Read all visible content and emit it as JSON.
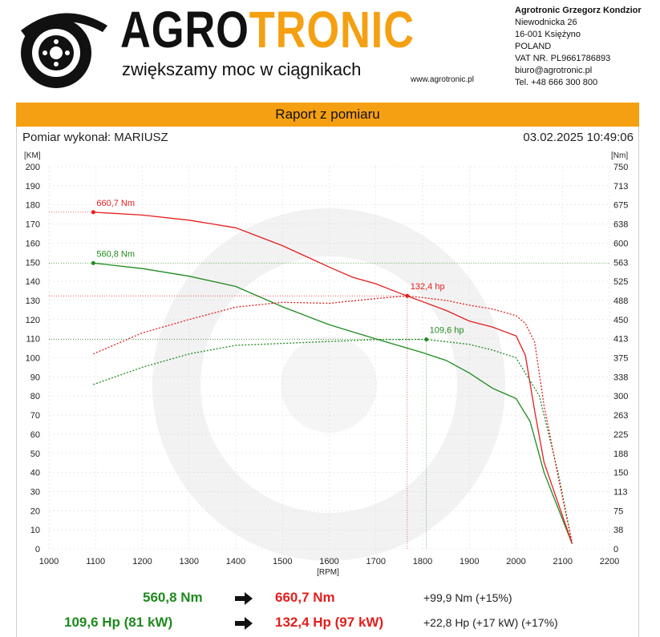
{
  "header": {
    "brand_part1": "AGRO",
    "brand_part2": "TRONIC",
    "tagline": "zwiększamy moc w ciągnikach",
    "website": "www.agrotronic.pl",
    "company_name": "Agrotronic Grzegorz Kondzior",
    "address_line1": "Niewodnicka 26",
    "address_line2": "16-001 Księżyno",
    "country": "POLAND",
    "vat": "VAT NR. PL9661786893",
    "email": "biuro@agrotronic.pl",
    "phone": "Tel. +48 666 300 800"
  },
  "report": {
    "title": "Raport z pomiaru",
    "performed_by": "Pomiar wykonał: MARIUSZ",
    "datetime": "03.02.2025 10:49:06"
  },
  "colors": {
    "accent": "#f5a012",
    "stock": "#1f8a1f",
    "tuned": "#e41e1e",
    "grid": "#dcdcdc"
  },
  "chart_data": {
    "type": "line",
    "xlabel": "[RPM]",
    "ylabel_left": "[KM]",
    "ylabel_right": "[Nm]",
    "xlim": [
      1000,
      2200
    ],
    "ylim_left": [
      0,
      200
    ],
    "ylim_right": [
      0,
      750
    ],
    "x_ticks": [
      1000,
      1100,
      1200,
      1300,
      1400,
      1500,
      1600,
      1700,
      1800,
      1900,
      2000,
      2100,
      2200
    ],
    "y_ticks_left": [
      0,
      10,
      20,
      30,
      40,
      50,
      60,
      70,
      80,
      90,
      100,
      110,
      120,
      130,
      140,
      150,
      160,
      170,
      180,
      190,
      200
    ],
    "y_ticks_right": [
      "0",
      "38",
      "75",
      "113",
      "150",
      "188",
      "225",
      "263",
      "300",
      "338",
      "375",
      "413",
      "450",
      "488",
      "525",
      "563",
      "600",
      "638",
      "675",
      "713",
      "750"
    ],
    "grid": true,
    "series": [
      {
        "name": "torque-stock",
        "axis": "right",
        "style": "solid",
        "color": "#1f8a1f",
        "x": [
          1095,
          1200,
          1300,
          1400,
          1500,
          1600,
          1700,
          1800,
          1850,
          1900,
          1950,
          2000,
          2030,
          2060,
          2090,
          2120
        ],
        "values": [
          560.8,
          550,
          535,
          515,
          475,
          440,
          412,
          385,
          370,
          345,
          315,
          295,
          250,
          150,
          80,
          10
        ]
      },
      {
        "name": "torque-tuned",
        "axis": "right",
        "style": "solid",
        "color": "#e41e1e",
        "x": [
          1095,
          1200,
          1300,
          1400,
          1500,
          1600,
          1650,
          1700,
          1750,
          1800,
          1850,
          1900,
          1950,
          2000,
          2020,
          2040,
          2060,
          2090,
          2120
        ],
        "values": [
          660.7,
          655,
          645,
          630,
          595,
          553,
          533,
          520,
          502,
          485,
          468,
          447,
          435,
          418,
          380,
          270,
          170,
          90,
          10
        ]
      },
      {
        "name": "power-stock",
        "axis": "left",
        "style": "dotted",
        "color": "#1f8a1f",
        "x": [
          1095,
          1200,
          1300,
          1400,
          1500,
          1600,
          1700,
          1808,
          1900,
          1950,
          2000,
          2050,
          2090,
          2120
        ],
        "values": [
          86,
          95,
          102,
          106.5,
          107.5,
          108.5,
          109.5,
          109.6,
          107,
          104,
          100,
          80,
          40,
          3
        ]
      },
      {
        "name": "power-tuned",
        "axis": "left",
        "style": "dotted",
        "color": "#e41e1e",
        "x": [
          1095,
          1200,
          1300,
          1400,
          1500,
          1600,
          1700,
          1767,
          1850,
          1900,
          1950,
          2000,
          2020,
          2040,
          2060,
          2090,
          2120
        ],
        "values": [
          102,
          113,
          120,
          126.5,
          129,
          128.5,
          131,
          132.4,
          130,
          127.5,
          125.5,
          122,
          118,
          108,
          75,
          38,
          3
        ]
      }
    ],
    "annotations": [
      {
        "series": "torque-tuned",
        "x": 1095,
        "y": 660.7,
        "label": "660,7 Nm"
      },
      {
        "series": "torque-stock",
        "x": 1095,
        "y": 560.8,
        "label": "560,8 Nm"
      },
      {
        "series": "power-tuned",
        "x": 1767,
        "y": 132.4,
        "label": "132,4 hp"
      },
      {
        "series": "power-stock",
        "x": 1808,
        "y": 109.6,
        "label": "109,6 hp"
      }
    ]
  },
  "summary": {
    "torque_before": "560,8 Nm",
    "torque_after": "660,7 Nm",
    "torque_diff": "+99,9 Nm (+15%)",
    "power_before": "109,6 Hp (81 kW)",
    "power_after": "132,4 Hp (97 kW)",
    "power_diff": "+22,8 Hp  (+17 kW)  (+17%)"
  }
}
